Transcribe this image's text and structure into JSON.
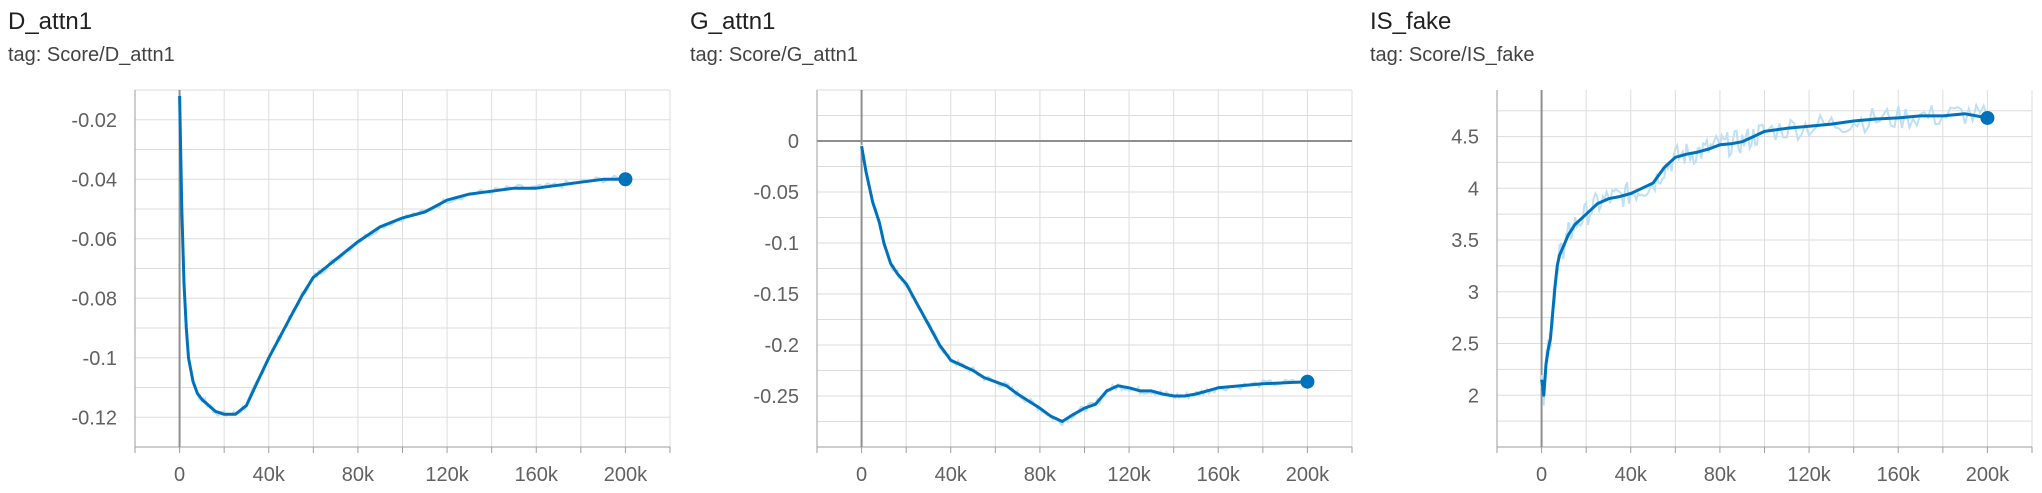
{
  "colors": {
    "series": "#0072bc",
    "raw": "#bfe0f2",
    "grid": "#dddddd",
    "axis": "#9e9e9e",
    "zero": "#8f8f8f",
    "text": "#616161"
  },
  "chart_data": [
    {
      "type": "line",
      "title": "D_attn1",
      "subtitle": "tag: Score/D_attn1",
      "xlim": [
        -20000,
        220000
      ],
      "ylim": [
        -0.13,
        -0.01
      ],
      "xticks": [
        0,
        40000,
        80000,
        120000,
        160000,
        200000
      ],
      "xtick_labels": [
        "0",
        "40k",
        "80k",
        "120k",
        "160k",
        "200k"
      ],
      "yticks": [
        -0.02,
        -0.04,
        -0.06,
        -0.08,
        -0.1,
        -0.12
      ],
      "ytick_labels": [
        "-0.02",
        "-0.04",
        "-0.06",
        "-0.08",
        "-0.1",
        "-0.12"
      ],
      "grid": true,
      "series": [
        {
          "x": [
            0,
            1000,
            2000,
            3000,
            4000,
            6000,
            8000,
            10000,
            13000,
            16000,
            20000,
            25000,
            30000,
            35000,
            40000,
            45000,
            50000,
            55000,
            60000,
            65000,
            70000,
            80000,
            90000,
            100000,
            110000,
            120000,
            130000,
            140000,
            150000,
            160000,
            170000,
            180000,
            190000,
            200000
          ],
          "y": [
            -0.012,
            -0.05,
            -0.075,
            -0.09,
            -0.1,
            -0.108,
            -0.112,
            -0.114,
            -0.116,
            -0.118,
            -0.119,
            -0.119,
            -0.116,
            -0.108,
            -0.1,
            -0.093,
            -0.086,
            -0.079,
            -0.073,
            -0.07,
            -0.067,
            -0.061,
            -0.056,
            -0.053,
            -0.051,
            -0.047,
            -0.045,
            -0.044,
            -0.043,
            -0.043,
            -0.042,
            -0.041,
            -0.04,
            -0.04
          ]
        }
      ]
    },
    {
      "type": "line",
      "title": "G_attn1",
      "subtitle": "tag: Score/G_attn1",
      "xlim": [
        -20000,
        220000
      ],
      "ylim": [
        -0.3,
        0.05
      ],
      "xticks": [
        0,
        40000,
        80000,
        120000,
        160000,
        200000
      ],
      "xtick_labels": [
        "0",
        "40k",
        "80k",
        "120k",
        "160k",
        "200k"
      ],
      "yticks": [
        0,
        -0.05,
        -0.1,
        -0.15,
        -0.2,
        -0.25
      ],
      "ytick_labels": [
        "0",
        "-0.05",
        "-0.1",
        "-0.15",
        "-0.2",
        "-0.25"
      ],
      "grid": true,
      "series": [
        {
          "x": [
            0,
            2000,
            5000,
            8000,
            10000,
            13000,
            16000,
            20000,
            25000,
            30000,
            35000,
            40000,
            45000,
            50000,
            55000,
            60000,
            65000,
            70000,
            75000,
            80000,
            85000,
            90000,
            95000,
            100000,
            105000,
            110000,
            115000,
            120000,
            125000,
            130000,
            135000,
            140000,
            145000,
            150000,
            155000,
            160000,
            170000,
            180000,
            190000,
            200000
          ],
          "y": [
            -0.005,
            -0.03,
            -0.06,
            -0.08,
            -0.1,
            -0.12,
            -0.13,
            -0.14,
            -0.16,
            -0.18,
            -0.2,
            -0.215,
            -0.22,
            -0.225,
            -0.232,
            -0.236,
            -0.24,
            -0.248,
            -0.255,
            -0.262,
            -0.27,
            -0.275,
            -0.268,
            -0.262,
            -0.258,
            -0.245,
            -0.24,
            -0.242,
            -0.245,
            -0.245,
            -0.248,
            -0.25,
            -0.25,
            -0.248,
            -0.245,
            -0.242,
            -0.24,
            -0.238,
            -0.237,
            -0.236
          ]
        }
      ]
    },
    {
      "type": "line",
      "title": "IS_fake",
      "subtitle": "tag: Score/IS_fake",
      "xlim": [
        -20000,
        220000
      ],
      "ylim": [
        1.5,
        4.95
      ],
      "xticks": [
        0,
        40000,
        80000,
        120000,
        160000,
        200000
      ],
      "xtick_labels": [
        "0",
        "40k",
        "80k",
        "120k",
        "160k",
        "200k"
      ],
      "yticks": [
        4.5,
        4,
        3.5,
        3,
        2.5,
        2
      ],
      "ytick_labels": [
        "4.5",
        "4",
        "3.5",
        "3",
        "2.5",
        "2"
      ],
      "grid": true,
      "series": [
        {
          "x": [
            0,
            1000,
            2000,
            3000,
            4000,
            5000,
            6000,
            7000,
            8000,
            10000,
            12000,
            15000,
            20000,
            25000,
            30000,
            35000,
            40000,
            45000,
            50000,
            55000,
            60000,
            65000,
            70000,
            75000,
            80000,
            85000,
            90000,
            95000,
            100000,
            110000,
            120000,
            130000,
            140000,
            150000,
            160000,
            170000,
            180000,
            190000,
            200000
          ],
          "y": [
            2.15,
            2.0,
            2.3,
            2.45,
            2.55,
            2.8,
            3.05,
            3.25,
            3.35,
            3.45,
            3.55,
            3.65,
            3.75,
            3.85,
            3.9,
            3.92,
            3.95,
            4.0,
            4.05,
            4.2,
            4.3,
            4.33,
            4.35,
            4.38,
            4.42,
            4.43,
            4.45,
            4.5,
            4.55,
            4.58,
            4.6,
            4.62,
            4.65,
            4.67,
            4.68,
            4.7,
            4.7,
            4.72,
            4.68
          ]
        }
      ]
    }
  ]
}
